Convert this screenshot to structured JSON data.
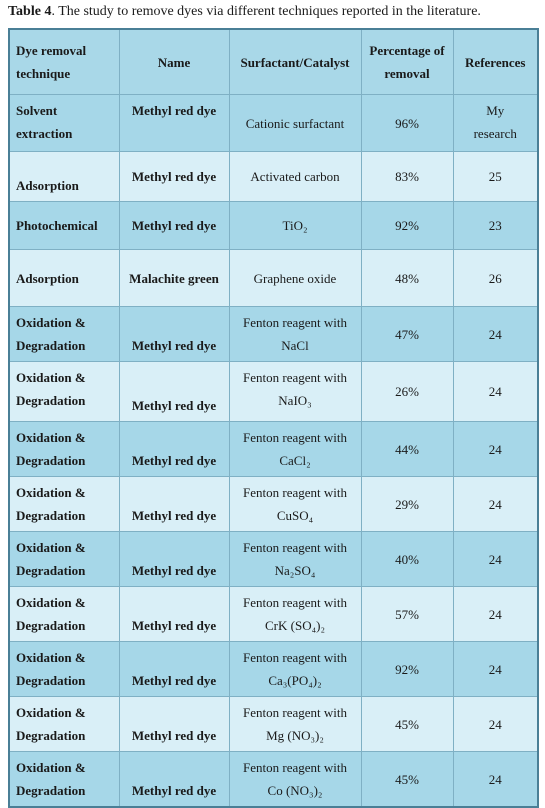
{
  "caption": {
    "label": "Table 4",
    "text": ". The study to remove dyes via different techniques reported in the literature."
  },
  "table": {
    "header": [
      "Dye removal technique",
      "Name",
      "Surfactant/Catalyst",
      "Percentage of removal",
      "References"
    ],
    "rows": [
      [
        "Solvent extraction",
        "Methyl red dye",
        "Cationic surfactant",
        "96%",
        "My research"
      ],
      [
        "Adsorption",
        "Methyl red dye",
        "Activated carbon",
        "83%",
        "25"
      ],
      [
        "Photochemical",
        "Methyl red dye",
        "TiO₂",
        "92%",
        "23"
      ],
      [
        "Adsorption",
        "Malachite green",
        "Graphene oxide",
        "48%",
        "26"
      ],
      [
        "Oxidation & Degradation",
        "Methyl red dye",
        "Fenton reagent with NaCl",
        "47%",
        "24"
      ],
      [
        "Oxidation & Degradation",
        "Methyl red dye",
        "Fenton reagent with NaIO₃",
        "26%",
        "24"
      ],
      [
        "Oxidation & Degradation",
        "Methyl red dye",
        "Fenton reagent with CaCl₂",
        "44%",
        "24"
      ],
      [
        "Oxidation & Degradation",
        "Methyl red dye",
        "Fenton reagent with CuSO₄",
        "29%",
        "24"
      ],
      [
        "Oxidation & Degradation",
        "Methyl red dye",
        "Fenton reagent with Na₂SO₄",
        "40%",
        "24"
      ],
      [
        "Oxidation & Degradation",
        "Methyl red dye",
        "Fenton reagent with CrK (SO₄)₂",
        "57%",
        "24"
      ],
      [
        "Oxidation & Degradation",
        "Methyl red dye",
        "Fenton reagent with Ca₃(PO₄)₂",
        "92%",
        "24"
      ],
      [
        "Oxidation & Degradation",
        "Methyl red dye",
        "Fenton reagent with Mg (NO₃)₂",
        "45%",
        "24"
      ],
      [
        "Oxidation & Degradation",
        "Methyl red dye",
        "Fenton reagent with Co (NO₃)₂",
        "45%",
        "24"
      ]
    ]
  }
}
